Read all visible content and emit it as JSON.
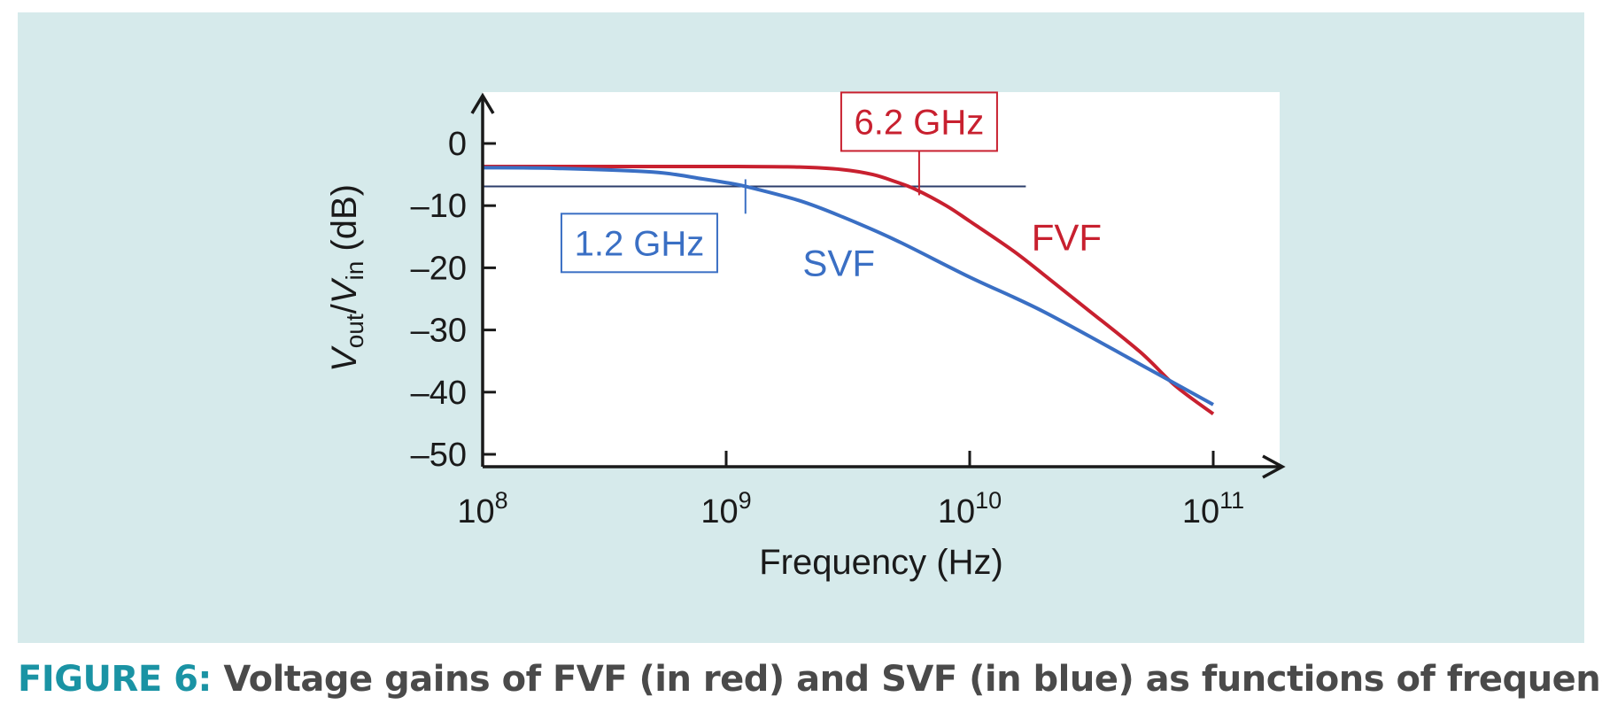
{
  "caption": {
    "label": "FIGURE 6:",
    "text": "Voltage gains of FVF (in red) and SVF (in blue) as functions of frequency."
  },
  "chart_data": {
    "type": "line",
    "xlabel": "Frequency (Hz)",
    "ylabel": {
      "v1": "V",
      "sub1": "out",
      "slash": "/",
      "v2": "V",
      "sub2": "in",
      "unit": " (dB)"
    },
    "xscale": "log",
    "xlim": [
      100000000.0,
      100000000000.0
    ],
    "ylim": [
      -50,
      0
    ],
    "x_ticks": [
      {
        "value": 100000000.0,
        "base": "10",
        "exp": "8"
      },
      {
        "value": 1000000000.0,
        "base": "10",
        "exp": "9"
      },
      {
        "value": 10000000000.0,
        "base": "10",
        "exp": "10"
      },
      {
        "value": 100000000000.0,
        "base": "10",
        "exp": "11"
      }
    ],
    "y_ticks": [
      {
        "value": 0,
        "label": "0"
      },
      {
        "value": -10,
        "label": "–10"
      },
      {
        "value": -20,
        "label": "–20"
      },
      {
        "value": -30,
        "label": "–30"
      },
      {
        "value": -40,
        "label": "–40"
      },
      {
        "value": -50,
        "label": "–50"
      }
    ],
    "series": [
      {
        "name": "FVF",
        "color": "#c8202f",
        "points": [
          [
            100000000.0,
            -3.7
          ],
          [
            300000000.0,
            -3.7
          ],
          [
            1000000000.0,
            -3.7
          ],
          [
            2000000000.0,
            -3.8
          ],
          [
            3000000000.0,
            -4.2
          ],
          [
            4000000000.0,
            -5.0
          ],
          [
            5000000000.0,
            -6.2
          ],
          [
            6000000000.0,
            -7.4
          ],
          [
            8000000000.0,
            -10.0
          ],
          [
            10000000000.0,
            -12.5
          ],
          [
            15000000000.0,
            -17.2
          ],
          [
            20000000000.0,
            -21.0
          ],
          [
            30000000000.0,
            -26.5
          ],
          [
            50000000000.0,
            -33.5
          ],
          [
            70000000000.0,
            -39.0
          ],
          [
            100000000000.0,
            -43.5
          ]
        ]
      },
      {
        "name": "SVF",
        "color": "#3a6fc4",
        "points": [
          [
            100000000.0,
            -3.9
          ],
          [
            200000000.0,
            -4.0
          ],
          [
            500000000.0,
            -4.6
          ],
          [
            800000000.0,
            -5.7
          ],
          [
            1000000000.0,
            -6.3
          ],
          [
            1200000000.0,
            -6.9
          ],
          [
            2000000000.0,
            -9.2
          ],
          [
            3000000000.0,
            -11.8
          ],
          [
            5000000000.0,
            -15.6
          ],
          [
            10000000000.0,
            -21.5
          ],
          [
            20000000000.0,
            -27.0
          ],
          [
            50000000000.0,
            -35.5
          ],
          [
            100000000000.0,
            -42.0
          ]
        ]
      }
    ],
    "reference_line": {
      "y": -6.9,
      "x_start": 100000000.0,
      "x_end": 17000000000.0,
      "color": "#2c3e6b"
    },
    "annotations": [
      {
        "text": "6.2 GHz",
        "color": "#c8202f",
        "marker_x": 6200000000.0,
        "box_x": 6200000000.0,
        "box_y": 3.5
      },
      {
        "text": "1.2 GHz",
        "color": "#3a6fc4",
        "marker_x": 1200000000.0,
        "box_x": 440000000.0,
        "box_y": -16.0
      }
    ],
    "series_labels": [
      {
        "text": "FVF",
        "color": "#c8202f",
        "x": 25000000000.0,
        "y": -17.2
      },
      {
        "text": "SVF",
        "color": "#3a6fc4",
        "x": 2900000000.0,
        "y": -21.3
      }
    ]
  }
}
